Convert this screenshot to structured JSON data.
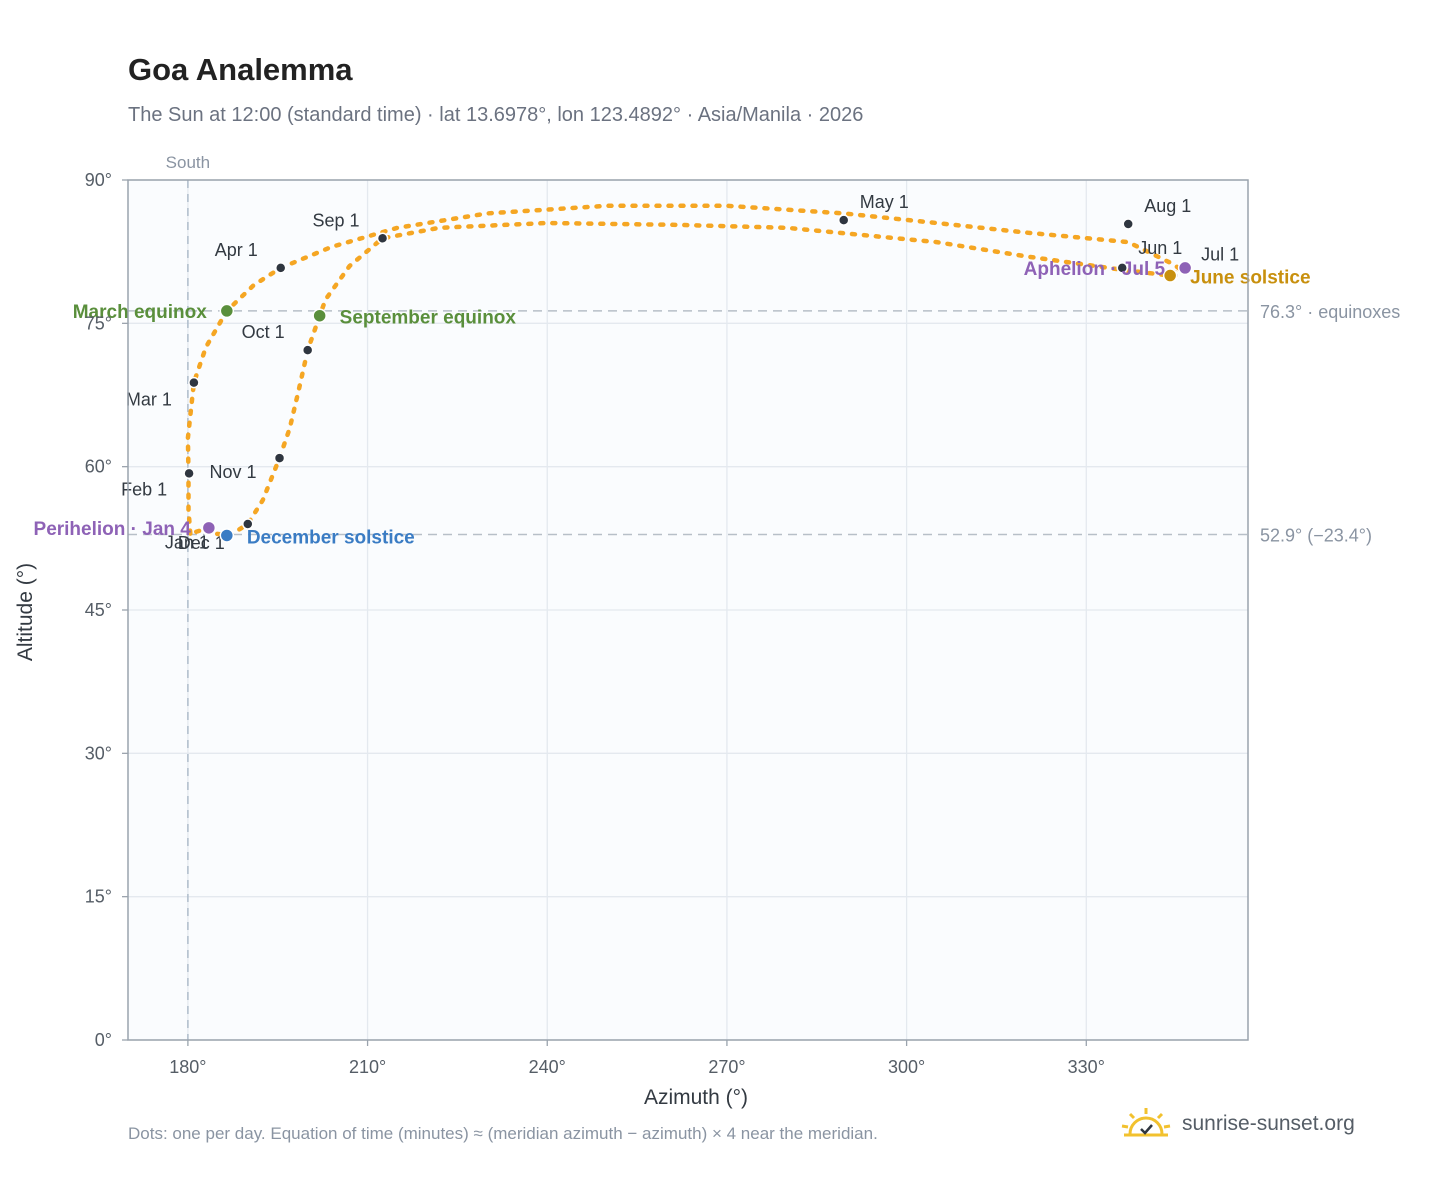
{
  "header": {
    "title": "Goa Analemma",
    "subtitle": "The Sun at 12:00 (standard time) · lat 13.6978°, lon 123.4892° · Asia/Manila · 2026"
  },
  "footer": {
    "note": "Dots: one per day. Equation of time (minutes) ≈ (meridian azimuth − azimuth) × 4 near the meridian.",
    "brand": "sunrise-sunset.org"
  },
  "colors": {
    "curve": "#f5a623",
    "month_marker": "#2f3640",
    "equinox": "#5a8f3c",
    "december_solstice": "#3a7cc4",
    "june_solstice": "#c8900e",
    "apsis": "#8e62b6",
    "plot_bg": "#fafcfe",
    "grid": "#e4e9ef",
    "axis": "#9aa3ad",
    "tick_text": "#555d66"
  },
  "chart_data": {
    "type": "scatter",
    "xlabel": "Azimuth (°)",
    "ylabel": "Altitude (°)",
    "xlim": [
      170,
      357
    ],
    "ylim": [
      0,
      90
    ],
    "x_ticks": [
      {
        "value": 180,
        "label": "180°"
      },
      {
        "value": 210,
        "label": "210°"
      },
      {
        "value": 240,
        "label": "240°"
      },
      {
        "value": 270,
        "label": "270°"
      },
      {
        "value": 300,
        "label": "300°"
      },
      {
        "value": 330,
        "label": "330°"
      }
    ],
    "y_ticks": [
      {
        "value": 0,
        "label": "0°"
      },
      {
        "value": 15,
        "label": "15°"
      },
      {
        "value": 30,
        "label": "30°"
      },
      {
        "value": 45,
        "label": "45°"
      },
      {
        "value": 60,
        "label": "60°"
      },
      {
        "value": 75,
        "label": "75°"
      },
      {
        "value": 90,
        "label": "90°"
      }
    ],
    "grid": true,
    "meridian": {
      "azimuth": 180,
      "label": "South"
    },
    "reference_lines": [
      {
        "altitude": 76.3,
        "label": "76.3° · equinoxes"
      },
      {
        "altitude": 52.9,
        "label": "52.9° (−23.4°)"
      }
    ],
    "analemma_path": [
      [
        180.4,
        53.0
      ],
      [
        180.1,
        55.5
      ],
      [
        180.1,
        59.3
      ],
      [
        180.0,
        63.0
      ],
      [
        180.6,
        66.5
      ],
      [
        181.0,
        68.8
      ],
      [
        183.0,
        72.5
      ],
      [
        186.5,
        76.3
      ],
      [
        191.0,
        79.0
      ],
      [
        195.5,
        80.8
      ],
      [
        204.0,
        83.0
      ],
      [
        215.0,
        85.0
      ],
      [
        230.0,
        86.5
      ],
      [
        250.0,
        87.3
      ],
      [
        270.0,
        87.3
      ],
      [
        289.5,
        86.5
      ],
      [
        305.0,
        85.5
      ],
      [
        320.0,
        84.5
      ],
      [
        337.0,
        83.5
      ],
      [
        344.5,
        81.2
      ],
      [
        346.5,
        80.3
      ],
      [
        346.0,
        80.8
      ],
      [
        344.0,
        80.0
      ],
      [
        336.0,
        80.6
      ],
      [
        320.0,
        82.0
      ],
      [
        305.0,
        83.5
      ],
      [
        280.0,
        85.0
      ],
      [
        262.0,
        85.3
      ],
      [
        240.0,
        85.5
      ],
      [
        222.0,
        85.0
      ],
      [
        212.5,
        83.9
      ],
      [
        207.0,
        81.0
      ],
      [
        203.0,
        77.5
      ],
      [
        202.0,
        75.8
      ],
      [
        200.0,
        72.2
      ],
      [
        198.5,
        68.0
      ],
      [
        197.0,
        64.0
      ],
      [
        195.3,
        60.9
      ],
      [
        192.5,
        56.5
      ],
      [
        190.0,
        54.0
      ],
      [
        187.0,
        52.8
      ],
      [
        184.5,
        53.0
      ],
      [
        183.5,
        53.6
      ],
      [
        180.4,
        53.0
      ]
    ],
    "month_markers": [
      {
        "label": "Jan 1",
        "az": 183.5,
        "alt": 53.3
      },
      {
        "label": "Feb 1",
        "az": 180.2,
        "alt": 59.3
      },
      {
        "label": "Mar 1",
        "az": 181.0,
        "alt": 68.8
      },
      {
        "label": "Apr 1",
        "az": 195.5,
        "alt": 80.8
      },
      {
        "label": "May 1",
        "az": 289.5,
        "alt": 85.8
      },
      {
        "label": "Jun 1",
        "az": 336.0,
        "alt": 80.8
      },
      {
        "label": "Jul 1",
        "az": 344.5,
        "alt": 80.0
      },
      {
        "label": "Aug 1",
        "az": 337.0,
        "alt": 85.4
      },
      {
        "label": "Sep 1",
        "az": 212.5,
        "alt": 83.9
      },
      {
        "label": "Oct 1",
        "az": 200.0,
        "alt": 72.2
      },
      {
        "label": "Nov 1",
        "az": 195.3,
        "alt": 60.9
      },
      {
        "label": "Dec 1",
        "az": 190.0,
        "alt": 54.0
      }
    ],
    "events": [
      {
        "label": "March equinox",
        "az": 186.5,
        "alt": 76.3,
        "kind": "equinox"
      },
      {
        "label": "September equinox",
        "az": 202.0,
        "alt": 75.8,
        "kind": "equinox"
      },
      {
        "label": "June solstice",
        "az": 344.0,
        "alt": 80.0,
        "kind": "june_solstice"
      },
      {
        "label": "December solstice",
        "az": 186.5,
        "alt": 52.8,
        "kind": "december_solstice"
      },
      {
        "label": "Perihelion · Jan 4",
        "az": 183.5,
        "alt": 53.6,
        "kind": "apsis"
      },
      {
        "label": "Aphelion · Jul 5",
        "az": 346.5,
        "alt": 80.8,
        "kind": "apsis"
      }
    ]
  }
}
